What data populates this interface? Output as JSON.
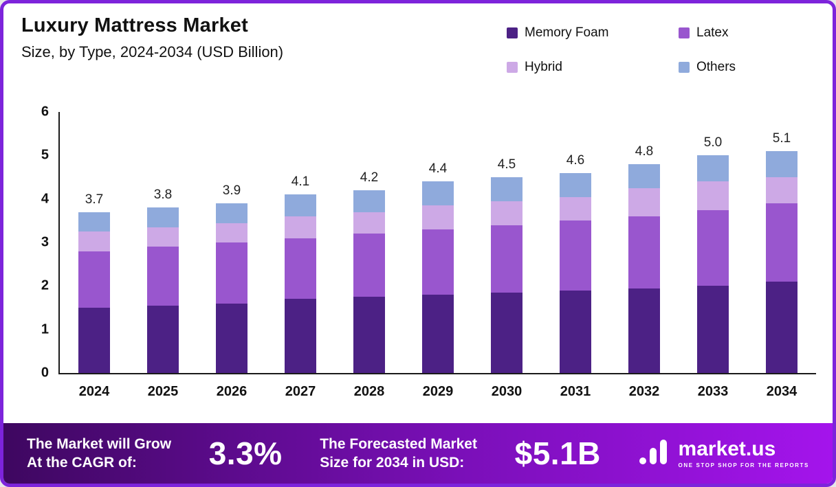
{
  "header": {
    "title": "Luxury Mattress Market",
    "subtitle": "Size, by Type, 2024-2034 (USD Billion)"
  },
  "legend": [
    {
      "label": "Memory Foam",
      "color": "#4C2185"
    },
    {
      "label": "Latex",
      "color": "#9956CE"
    },
    {
      "label": "Hybrid",
      "color": "#CDA9E6"
    },
    {
      "label": "Others",
      "color": "#8FAADC"
    }
  ],
  "chart_data": {
    "type": "bar",
    "stacked": true,
    "title": "Luxury Mattress Market Size, by Type, 2024-2034 (USD Billion)",
    "xlabel": "",
    "ylabel": "USD Billion",
    "ylim": [
      0,
      6
    ],
    "yticks": [
      0,
      1,
      2,
      3,
      4,
      5,
      6
    ],
    "grid": false,
    "legend_position": "top-right",
    "categories": [
      "2024",
      "2025",
      "2026",
      "2027",
      "2028",
      "2029",
      "2030",
      "2031",
      "2032",
      "2033",
      "2034"
    ],
    "totals": [
      3.7,
      3.8,
      3.9,
      4.1,
      4.2,
      4.4,
      4.5,
      4.6,
      4.8,
      5.0,
      5.1
    ],
    "total_labels": [
      "3.7",
      "3.8",
      "3.9",
      "4.1",
      "4.2",
      "4.4",
      "4.5",
      "4.6",
      "4.8",
      "5.0",
      "5.1"
    ],
    "series": [
      {
        "name": "Memory Foam",
        "color": "#4C2185",
        "values": [
          1.5,
          1.55,
          1.6,
          1.7,
          1.75,
          1.8,
          1.85,
          1.9,
          1.95,
          2.0,
          2.1
        ]
      },
      {
        "name": "Latex",
        "color": "#9956CE",
        "values": [
          1.3,
          1.35,
          1.4,
          1.4,
          1.45,
          1.5,
          1.55,
          1.6,
          1.65,
          1.75,
          1.8
        ]
      },
      {
        "name": "Hybrid",
        "color": "#CDA9E6",
        "values": [
          0.45,
          0.45,
          0.45,
          0.5,
          0.5,
          0.55,
          0.55,
          0.55,
          0.65,
          0.65,
          0.6
        ]
      },
      {
        "name": "Others",
        "color": "#8FAADC",
        "values": [
          0.45,
          0.45,
          0.45,
          0.5,
          0.5,
          0.55,
          0.55,
          0.55,
          0.55,
          0.6,
          0.6
        ]
      }
    ]
  },
  "banner": {
    "growth_label_line1": "The Market will Grow",
    "growth_label_line2": "At the CAGR of:",
    "cagr_value": "3.3%",
    "forecast_label_line1": "The Forecasted Market",
    "forecast_label_line2": "Size for 2034 in USD:",
    "forecast_value": "$5.1B",
    "logo_text": "market.us",
    "logo_tagline": "ONE STOP SHOP FOR THE REPORTS"
  },
  "colors": {
    "frame_border": "#7D24DB",
    "banner_gradient_start": "#3E0760",
    "banner_gradient_end": "#A414EC",
    "axis": "#1a1a1a"
  }
}
